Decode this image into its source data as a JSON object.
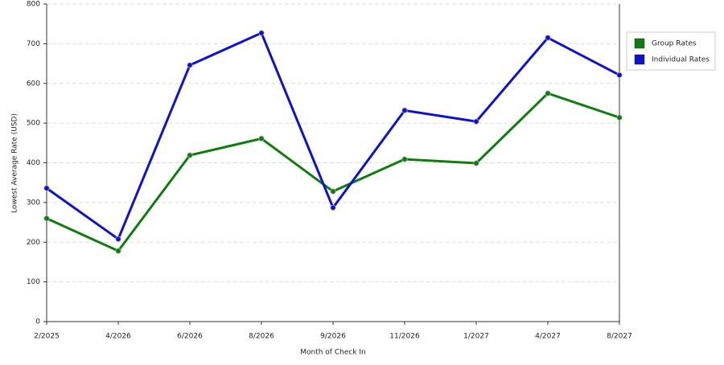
{
  "chart_data": {
    "type": "line",
    "x_label": "Month of Check In",
    "y_label": "Lowest Average Rate (USD)",
    "categories": [
      "2/2025",
      "4/2026",
      "6/2026",
      "8/2026",
      "9/2026",
      "11/2026",
      "1/2027",
      "4/2027",
      "8/2027"
    ],
    "series": [
      {
        "name": "Group Rates",
        "color": "#107c10",
        "values": [
          260,
          178,
          419,
          461,
          328,
          409,
          399,
          575,
          514
        ]
      },
      {
        "name": "Individual Rates",
        "color": "#1010d0",
        "values": [
          336,
          208,
          646,
          727,
          287,
          532,
          504,
          715,
          621
        ]
      }
    ],
    "ylim": [
      0,
      800
    ],
    "yticks": [
      0,
      100,
      200,
      300,
      400,
      500,
      600,
      700,
      800
    ],
    "grid": true,
    "legend": "right"
  }
}
